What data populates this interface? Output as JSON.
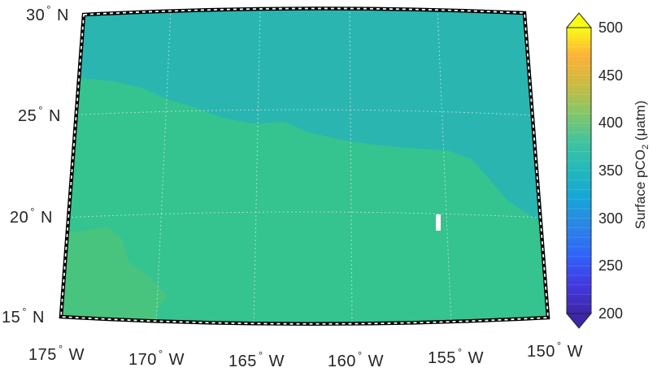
{
  "map": {
    "projection": "conic",
    "lon_range": [
      "175° W",
      "150° W"
    ],
    "lat_range": [
      "15° N",
      "30° N"
    ],
    "lat_labels": [
      {
        "value": "30",
        "hemi": "N"
      },
      {
        "value": "25",
        "hemi": "N"
      },
      {
        "value": "20",
        "hemi": "N"
      },
      {
        "value": "15",
        "hemi": "N"
      }
    ],
    "lon_labels": [
      {
        "value": "175",
        "hemi": "W"
      },
      {
        "value": "170",
        "hemi": "W"
      },
      {
        "value": "165",
        "hemi": "W"
      },
      {
        "value": "160",
        "hemi": "W"
      },
      {
        "value": "155",
        "hemi": "W"
      },
      {
        "value": "150",
        "hemi": "W"
      }
    ],
    "grid": true,
    "frame_style": "black-white checkered",
    "colors": {
      "north_region": "#2ab5b0",
      "south_region": "#35c38f",
      "southwest_patch": "#48c47f",
      "missing_data": "#ffffff"
    }
  },
  "colorbar": {
    "title_main": "Surface pCO",
    "title_sub": "2",
    "title_units": " (μatm)",
    "ticks": [
      "500",
      "450",
      "400",
      "350",
      "300",
      "250",
      "200"
    ],
    "min": 200,
    "max": 500,
    "colormap": "parula",
    "extend": "both"
  }
}
